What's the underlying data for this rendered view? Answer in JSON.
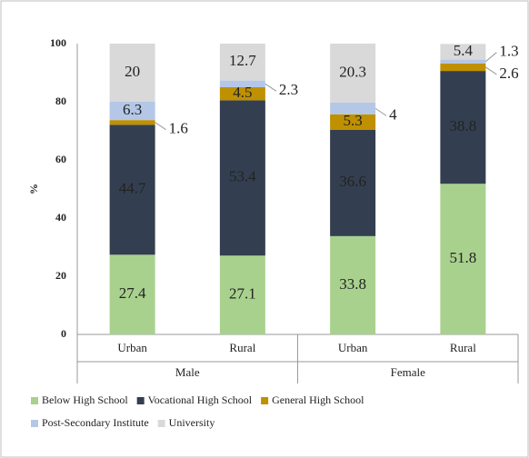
{
  "chart_data": {
    "type": "stacked_bar",
    "y_label": "%",
    "categories": [
      "Urban",
      "Rural",
      "Urban",
      "Rural"
    ],
    "groups": [
      "Male",
      "Female"
    ],
    "series": [
      {
        "name": "Below High School",
        "color": "#a9d18e",
        "values": [
          27.4,
          27.1,
          33.8,
          51.8
        ]
      },
      {
        "name": "Vocational High School",
        "color": "#333f50",
        "values": [
          44.7,
          53.4,
          36.6,
          38.8
        ]
      },
      {
        "name": "General High School",
        "color": "#bf9000",
        "values": [
          1.6,
          4.5,
          5.3,
          2.6
        ]
      },
      {
        "name": "Post-Secondary Institute",
        "color": "#b4c7e7",
        "values": [
          6.3,
          2.3,
          4,
          1.3
        ]
      },
      {
        "name": "University",
        "color": "#d9d9d9",
        "values": [
          20,
          12.7,
          20.3,
          5.4
        ]
      }
    ],
    "ylim": [
      0,
      100
    ],
    "yticks": [
      0,
      20,
      40,
      60,
      80,
      100
    ],
    "grid": false,
    "legend": "bottom"
  }
}
